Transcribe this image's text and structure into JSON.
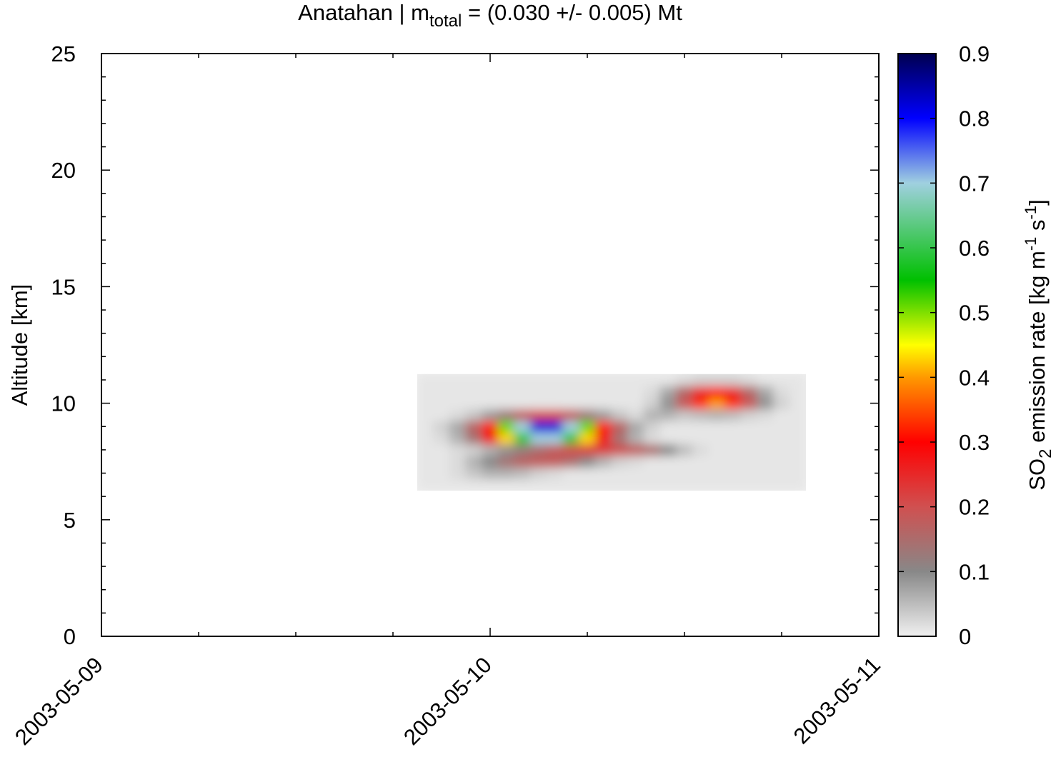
{
  "chart_data": {
    "type": "heatmap",
    "title": {
      "parts": [
        "Anatahan | m",
        "total",
        " = (0.030 +/- 0.005) Mt"
      ]
    },
    "ylabel": "Altitude [km]",
    "xlim": [
      0,
      48
    ],
    "xticks": [
      {
        "value": 0,
        "label": "2003-05-09"
      },
      {
        "value": 24,
        "label": "2003-05-10"
      },
      {
        "value": 48,
        "label": "2003-05-11"
      }
    ],
    "xminorticks": [
      6,
      12,
      18,
      30,
      36,
      42
    ],
    "ylim": [
      0,
      25
    ],
    "yticks": [
      0,
      5,
      10,
      15,
      20,
      25
    ],
    "yminorticks": [
      1,
      2,
      3,
      4,
      6,
      7,
      8,
      9,
      11,
      12,
      13,
      14,
      16,
      17,
      18,
      19,
      21,
      22,
      23,
      24
    ],
    "x": [
      20,
      21,
      22,
      23,
      24,
      25,
      26,
      27,
      28,
      29,
      30,
      31,
      32,
      33,
      34,
      35,
      36,
      37,
      38,
      39,
      40,
      41,
      42,
      43
    ],
    "y": [
      6.5,
      7.0,
      7.5,
      8.0,
      8.5,
      9.0,
      9.5,
      10.0,
      10.5,
      11.0
    ],
    "values": [
      [
        0.01,
        0.01,
        0.01,
        0.01,
        0.01,
        0.01,
        0.01,
        0.01,
        0.01,
        0.01,
        0.01,
        0.01,
        0.01,
        0.01,
        0.01,
        0.01,
        0.01,
        0.01,
        0.01,
        0.01,
        0.01,
        0.01,
        0.01,
        0.01
      ],
      [
        0.01,
        0.01,
        0.02,
        0.04,
        0.06,
        0.06,
        0.05,
        0.03,
        0.02,
        0.01,
        0.01,
        0.01,
        0.01,
        0.01,
        0.01,
        0.01,
        0.01,
        0.01,
        0.01,
        0.01,
        0.01,
        0.01,
        0.01,
        0.01
      ],
      [
        0.01,
        0.01,
        0.02,
        0.06,
        0.1,
        0.14,
        0.17,
        0.18,
        0.18,
        0.15,
        0.1,
        0.06,
        0.03,
        0.02,
        0.01,
        0.01,
        0.01,
        0.01,
        0.01,
        0.01,
        0.01,
        0.01,
        0.01,
        0.01
      ],
      [
        0.01,
        0.01,
        0.02,
        0.03,
        0.06,
        0.09,
        0.12,
        0.15,
        0.18,
        0.2,
        0.22,
        0.22,
        0.2,
        0.18,
        0.15,
        0.1,
        0.05,
        0.02,
        0.01,
        0.01,
        0.01,
        0.01,
        0.01,
        0.01
      ],
      [
        0.01,
        0.02,
        0.06,
        0.14,
        0.27,
        0.43,
        0.59,
        0.7,
        0.7,
        0.59,
        0.43,
        0.27,
        0.14,
        0.06,
        0.02,
        0.01,
        0.01,
        0.01,
        0.01,
        0.01,
        0.01,
        0.01,
        0.01,
        0.01
      ],
      [
        0.01,
        0.03,
        0.07,
        0.17,
        0.32,
        0.51,
        0.7,
        0.82,
        0.82,
        0.7,
        0.51,
        0.32,
        0.17,
        0.07,
        0.03,
        0.01,
        0.01,
        0.01,
        0.01,
        0.01,
        0.01,
        0.01,
        0.01,
        0.01
      ],
      [
        0.01,
        0.01,
        0.02,
        0.04,
        0.08,
        0.13,
        0.18,
        0.21,
        0.21,
        0.18,
        0.13,
        0.08,
        0.04,
        0.02,
        0.06,
        0.06,
        0.04,
        0.05,
        0.06,
        0.05,
        0.03,
        0.02,
        0.01,
        0.01
      ],
      [
        0.01,
        0.01,
        0.01,
        0.01,
        0.01,
        0.01,
        0.01,
        0.01,
        0.01,
        0.01,
        0.01,
        0.01,
        0.01,
        0.01,
        0.03,
        0.09,
        0.19,
        0.33,
        0.4,
        0.33,
        0.19,
        0.09,
        0.03,
        0.01
      ],
      [
        0.01,
        0.01,
        0.01,
        0.01,
        0.01,
        0.01,
        0.01,
        0.01,
        0.01,
        0.01,
        0.01,
        0.01,
        0.01,
        0.01,
        0.02,
        0.07,
        0.16,
        0.25,
        0.29,
        0.25,
        0.16,
        0.07,
        0.02,
        0.01
      ],
      [
        0.01,
        0.01,
        0.01,
        0.01,
        0.01,
        0.01,
        0.01,
        0.01,
        0.01,
        0.01,
        0.01,
        0.01,
        0.01,
        0.01,
        0.01,
        0.01,
        0.02,
        0.03,
        0.03,
        0.03,
        0.02,
        0.01,
        0.01,
        0.01
      ]
    ],
    "colorbar": {
      "label": {
        "parts": [
          "SO",
          "2",
          " emission rate [kg m",
          "-1",
          " s",
          "-1",
          "]"
        ]
      },
      "zlim": [
        0,
        0.9
      ],
      "zticks": [
        0,
        0.1,
        0.2,
        0.3,
        0.4,
        0.5,
        0.6,
        0.7,
        0.8,
        0.9
      ],
      "colormap": [
        {
          "value": 0,
          "color": "#f0f0f0"
        },
        {
          "value": 0.1,
          "color": "#888888"
        },
        {
          "value": 0.2,
          "color": "#d05050"
        },
        {
          "value": 0.3,
          "color": "#ff0000"
        },
        {
          "value": 0.4,
          "color": "#ff9900"
        },
        {
          "value": 0.45,
          "color": "#ffff00"
        },
        {
          "value": 0.55,
          "color": "#00c000"
        },
        {
          "value": 0.7,
          "color": "#a0d0e0"
        },
        {
          "value": 0.8,
          "color": "#0000ff"
        },
        {
          "value": 0.9,
          "color": "#000050"
        }
      ]
    }
  }
}
